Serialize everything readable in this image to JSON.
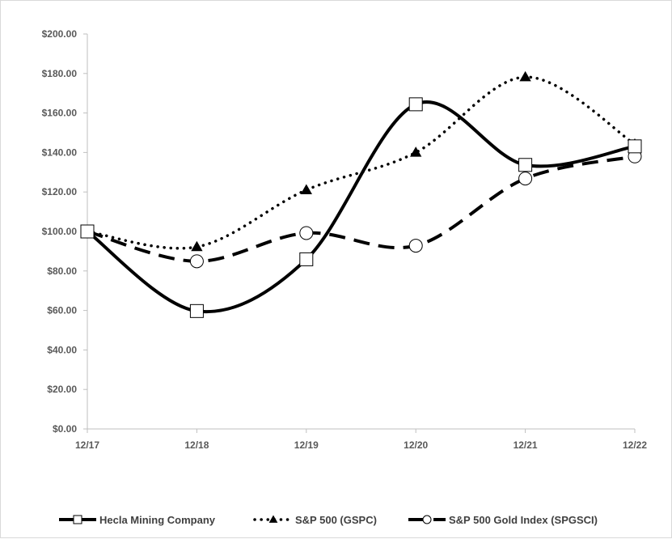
{
  "chart_data": {
    "type": "line",
    "title": "",
    "xlabel": "",
    "ylabel": "",
    "categories": [
      "12/17",
      "12/18",
      "12/19",
      "12/20",
      "12/21",
      "12/22"
    ],
    "yticks": [
      "$0.00",
      "$20.00",
      "$40.00",
      "$60.00",
      "$80.00",
      "$100.00",
      "$120.00",
      "$140.00",
      "$160.00",
      "$180.00",
      "$200.00"
    ],
    "ylim": [
      0,
      200
    ],
    "grid": false,
    "legend_position": "bottom",
    "series": [
      {
        "name": "Hecla Mining Company",
        "values": [
          100,
          59.7,
          85.9,
          164.4,
          133.7,
          143.1
        ],
        "line_style": "solid",
        "marker": "square",
        "color": "#000000"
      },
      {
        "name": "S&P 500 (GSPC)",
        "values": [
          100,
          92.2,
          121.0,
          140.0,
          178.2,
          144.2
        ],
        "line_style": "dotted",
        "marker": "triangle",
        "color": "#000000"
      },
      {
        "name": "S&P 500 Gold Index (SPGSCI)",
        "values": [
          100,
          84.9,
          99.2,
          92.8,
          126.8,
          138.0
        ],
        "line_style": "dashed",
        "marker": "circle",
        "color": "#000000"
      }
    ]
  }
}
